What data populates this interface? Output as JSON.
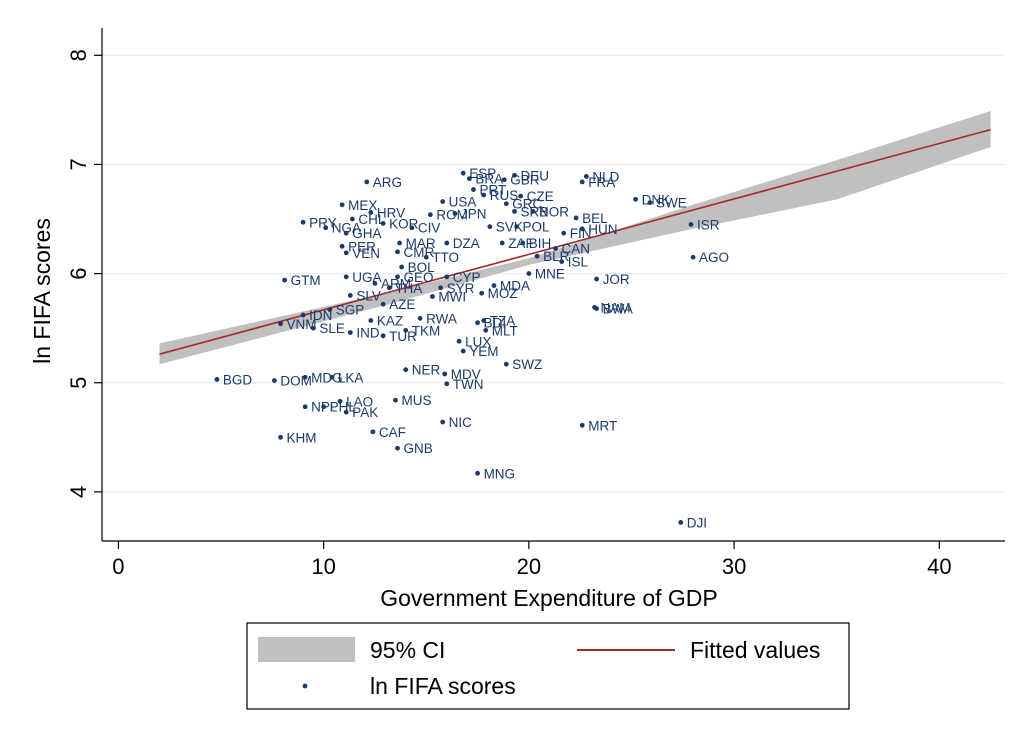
{
  "chart_data": {
    "type": "scatter",
    "xlabel": "Government Expenditure of GDP",
    "ylabel": "ln FIFA scores",
    "xlim": [
      -0.8,
      43.2
    ],
    "ylim": [
      3.55,
      8.25
    ],
    "x_ticks": [
      0,
      10,
      20,
      30,
      40
    ],
    "y_ticks": [
      4,
      5,
      6,
      7,
      8
    ],
    "grid": "horizontal",
    "fit": {
      "intercept": 5.16,
      "slope": 0.0508,
      "x_range": [
        2,
        42.5
      ]
    },
    "ci": [
      {
        "x": 2.0,
        "lo": 5.17,
        "hi": 5.36
      },
      {
        "x": 13.0,
        "lo": 5.71,
        "hi": 5.82
      },
      {
        "x": 20.0,
        "lo": 6.08,
        "hi": 6.14
      },
      {
        "x": 28.0,
        "lo": 6.41,
        "hi": 6.63
      },
      {
        "x": 35.0,
        "lo": 6.68,
        "hi": 7.04
      },
      {
        "x": 42.5,
        "lo": 7.16,
        "hi": 7.49
      }
    ],
    "series": [
      {
        "name": "ln FIFA scores",
        "points": [
          {
            "label": "ESP",
            "x": 16.8,
            "y": 6.92
          },
          {
            "label": "BRA",
            "x": 17.1,
            "y": 6.87
          },
          {
            "label": "DEU",
            "x": 19.3,
            "y": 6.9
          },
          {
            "label": "GBR",
            "x": 18.8,
            "y": 6.86
          },
          {
            "label": "NLD",
            "x": 22.8,
            "y": 6.89
          },
          {
            "label": "FRA",
            "x": 22.6,
            "y": 6.84
          },
          {
            "label": "ARG",
            "x": 12.1,
            "y": 6.84
          },
          {
            "label": "PRT",
            "x": 17.3,
            "y": 6.77
          },
          {
            "label": "RUS",
            "x": 17.8,
            "y": 6.72
          },
          {
            "label": "CZE",
            "x": 19.6,
            "y": 6.71
          },
          {
            "label": "GRC",
            "x": 18.9,
            "y": 6.64
          },
          {
            "label": "USA",
            "x": 15.8,
            "y": 6.66
          },
          {
            "label": "MEX",
            "x": 10.9,
            "y": 6.63
          },
          {
            "label": "DNK",
            "x": 25.2,
            "y": 6.68
          },
          {
            "label": "SWE",
            "x": 25.9,
            "y": 6.65
          },
          {
            "label": "HRV",
            "x": 12.3,
            "y": 6.56
          },
          {
            "label": "SRB",
            "x": 19.3,
            "y": 6.57
          },
          {
            "label": "NOR",
            "x": 20.2,
            "y": 6.57
          },
          {
            "label": "JPN",
            "x": 16.4,
            "y": 6.55
          },
          {
            "label": "ROM",
            "x": 15.2,
            "y": 6.54
          },
          {
            "label": "BEL",
            "x": 22.3,
            "y": 6.51
          },
          {
            "label": "CHL",
            "x": 11.4,
            "y": 6.5
          },
          {
            "label": "PRY",
            "x": 9.0,
            "y": 6.47
          },
          {
            "label": "KOR",
            "x": 12.9,
            "y": 6.46
          },
          {
            "label": "NGA",
            "x": 10.1,
            "y": 6.42
          },
          {
            "label": "GHA",
            "x": 11.1,
            "y": 6.37
          },
          {
            "label": "CIV",
            "x": 14.3,
            "y": 6.42
          },
          {
            "label": "HUN",
            "x": 22.6,
            "y": 6.41
          },
          {
            "label": "ISR",
            "x": 27.9,
            "y": 6.45
          },
          {
            "label": "POL",
            "x": 19.4,
            "y": 6.43
          },
          {
            "label": "FIN",
            "x": 21.7,
            "y": 6.37
          },
          {
            "label": "SVK",
            "x": 18.1,
            "y": 6.43
          },
          {
            "label": "PER",
            "x": 10.9,
            "y": 6.25
          },
          {
            "label": "VEN",
            "x": 11.1,
            "y": 6.19
          },
          {
            "label": "MAR",
            "x": 13.7,
            "y": 6.28
          },
          {
            "label": "DZA",
            "x": 16.0,
            "y": 6.28
          },
          {
            "label": "ZAF",
            "x": 18.7,
            "y": 6.28
          },
          {
            "label": "CAN",
            "x": 21.3,
            "y": 6.23
          },
          {
            "label": "BIH",
            "x": 19.7,
            "y": 6.28
          },
          {
            "label": "BLR",
            "x": 20.4,
            "y": 6.16
          },
          {
            "label": "ISL",
            "x": 21.6,
            "y": 6.11
          },
          {
            "label": "AGO",
            "x": 28.0,
            "y": 6.15
          },
          {
            "label": "CMR",
            "x": 13.6,
            "y": 6.2
          },
          {
            "label": "TTO",
            "x": 15.0,
            "y": 6.15
          },
          {
            "label": "BOL",
            "x": 13.8,
            "y": 6.06
          },
          {
            "label": "MNE",
            "x": 20.0,
            "y": 6.0
          },
          {
            "label": "MDA",
            "x": 18.3,
            "y": 5.89
          },
          {
            "label": "JOR",
            "x": 23.3,
            "y": 5.95
          },
          {
            "label": "GTM",
            "x": 8.1,
            "y": 5.94
          },
          {
            "label": "UGA",
            "x": 11.1,
            "y": 5.97
          },
          {
            "label": "GEO",
            "x": 13.6,
            "y": 5.97
          },
          {
            "label": "CYP",
            "x": 16.0,
            "y": 5.97
          },
          {
            "label": "ARM",
            "x": 12.5,
            "y": 5.91
          },
          {
            "label": "THA",
            "x": 13.2,
            "y": 5.87
          },
          {
            "label": "SYR",
            "x": 15.7,
            "y": 5.87
          },
          {
            "label": "MOZ",
            "x": 17.7,
            "y": 5.82
          },
          {
            "label": "SLV",
            "x": 11.3,
            "y": 5.8
          },
          {
            "label": "MWI",
            "x": 15.3,
            "y": 5.79
          },
          {
            "label": "AZE",
            "x": 12.9,
            "y": 5.72
          },
          {
            "label": "SGP",
            "x": 10.3,
            "y": 5.67
          },
          {
            "label": "IDN",
            "x": 9.0,
            "y": 5.62
          },
          {
            "label": "NAM",
            "x": 23.2,
            "y": 5.69
          },
          {
            "label": "BWA",
            "x": 23.3,
            "y": 5.68
          },
          {
            "label": "KAZ",
            "x": 12.3,
            "y": 5.57
          },
          {
            "label": "RWA",
            "x": 14.7,
            "y": 5.59
          },
          {
            "label": "TZA",
            "x": 17.8,
            "y": 5.57
          },
          {
            "label": "BDI",
            "x": 17.5,
            "y": 5.55
          },
          {
            "label": "MLT",
            "x": 17.9,
            "y": 5.48
          },
          {
            "label": "VNM",
            "x": 7.9,
            "y": 5.54
          },
          {
            "label": "SLE",
            "x": 9.5,
            "y": 5.5
          },
          {
            "label": "IND",
            "x": 11.3,
            "y": 5.46
          },
          {
            "label": "TUR",
            "x": 12.9,
            "y": 5.43
          },
          {
            "label": "TKM",
            "x": 14.0,
            "y": 5.48
          },
          {
            "label": "LUX",
            "x": 16.6,
            "y": 5.38
          },
          {
            "label": "YEM",
            "x": 16.8,
            "y": 5.29
          },
          {
            "label": "SWZ",
            "x": 18.9,
            "y": 5.17
          },
          {
            "label": "NER",
            "x": 14.0,
            "y": 5.12
          },
          {
            "label": "MDV",
            "x": 15.9,
            "y": 5.08
          },
          {
            "label": "TWN",
            "x": 16.0,
            "y": 4.99
          },
          {
            "label": "BGD",
            "x": 4.8,
            "y": 5.03
          },
          {
            "label": "DOM",
            "x": 7.6,
            "y": 5.02
          },
          {
            "label": "MDG",
            "x": 9.1,
            "y": 5.05
          },
          {
            "label": "LKA",
            "x": 10.4,
            "y": 5.05
          },
          {
            "label": "LAO",
            "x": 10.8,
            "y": 4.83
          },
          {
            "label": "MUS",
            "x": 13.5,
            "y": 4.84
          },
          {
            "label": "NPL",
            "x": 9.1,
            "y": 4.78
          },
          {
            "label": "PHL",
            "x": 10.0,
            "y": 4.78
          },
          {
            "label": "PAK",
            "x": 11.1,
            "y": 4.73
          },
          {
            "label": "NIC",
            "x": 15.8,
            "y": 4.64
          },
          {
            "label": "MRT",
            "x": 22.6,
            "y": 4.61
          },
          {
            "label": "CAF",
            "x": 12.4,
            "y": 4.55
          },
          {
            "label": "KHM",
            "x": 7.9,
            "y": 4.5
          },
          {
            "label": "GNB",
            "x": 13.6,
            "y": 4.4
          },
          {
            "label": "MNG",
            "x": 17.5,
            "y": 4.17
          },
          {
            "label": "DJI",
            "x": 27.4,
            "y": 3.72
          }
        ]
      }
    ]
  },
  "legend": {
    "ci_label": "95% CI",
    "fit_label": "Fitted values",
    "points_label": "ln FIFA scores"
  },
  "colors": {
    "point": "#1a3a6b",
    "fit_line": "#a52a2a",
    "ci_band": "#c0c0c0",
    "grid": "#e6eef2"
  }
}
